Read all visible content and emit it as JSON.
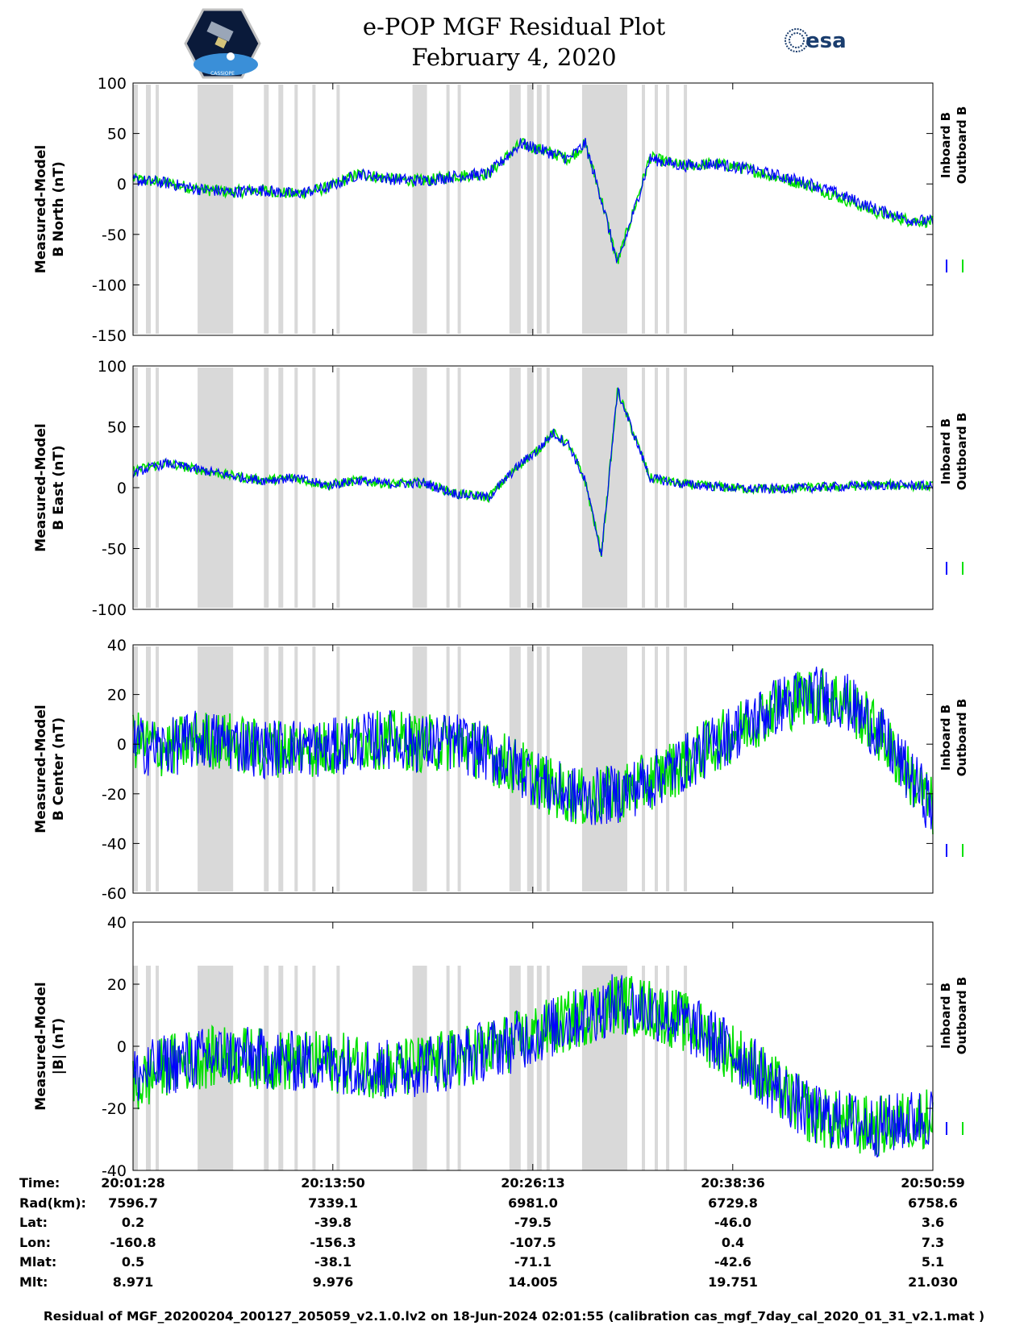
{
  "title_line1": "e-POP MGF Residual Plot",
  "title_line2": "February 4, 2020",
  "logos": {
    "left": "cassiope-mission-patch",
    "left_text": "CASSIOPE",
    "right": "esa-logo",
    "right_text": "esa"
  },
  "colors": {
    "inboard": "#0000ff",
    "outboard": "#00e000",
    "gap_shading": "#d9d9d9"
  },
  "chart_data": [
    {
      "type": "line",
      "ylabel_line1": "Measured-Model",
      "ylabel_line2": "B North (nT)",
      "ylim": [
        -150,
        100
      ],
      "yticks": [
        "100",
        "50",
        "0",
        "-50",
        "-100",
        "-150"
      ],
      "x_unit": "minutes since 20:01:28",
      "legend": [
        "Inboard B",
        "Outboard B"
      ],
      "series": [
        {
          "name": "Inboard B",
          "x": [
            0,
            2,
            4,
            6,
            8,
            10,
            12,
            14,
            16,
            18,
            20,
            22,
            24,
            26,
            27,
            28,
            29,
            30,
            32,
            34,
            36,
            38,
            40,
            42,
            44,
            46,
            48,
            50
          ],
          "values": [
            4,
            1,
            -5,
            -8,
            -6,
            -10,
            -4,
            10,
            5,
            3,
            8,
            10,
            40,
            30,
            25,
            40,
            -15,
            -80,
            25,
            18,
            20,
            15,
            8,
            0,
            -12,
            -25,
            -35,
            -38
          ]
        },
        {
          "name": "Outboard B",
          "x": [
            0,
            2,
            4,
            6,
            8,
            10,
            12,
            14,
            16,
            18,
            20,
            22,
            24,
            26,
            27,
            28,
            29,
            30,
            32,
            34,
            36,
            38,
            40,
            42,
            44,
            46,
            48,
            50
          ],
          "values": [
            5,
            1,
            -5,
            -8,
            -6,
            -10,
            -4,
            10,
            5,
            3,
            8,
            10,
            40,
            30,
            25,
            40,
            -15,
            -78,
            26,
            18,
            20,
            15,
            6,
            -2,
            -15,
            -28,
            -36,
            -38
          ]
        }
      ]
    },
    {
      "type": "line",
      "ylabel_line1": "Measured-Model",
      "ylabel_line2": "B East (nT)",
      "ylim": [
        -100,
        100
      ],
      "yticks": [
        "100",
        "50",
        "0",
        "-50",
        "-100"
      ],
      "x_unit": "minutes since 20:01:28",
      "legend": [
        "Inboard B",
        "Outboard B"
      ],
      "series": [
        {
          "name": "Inboard B",
          "x": [
            0,
            2,
            4,
            6,
            8,
            10,
            12,
            14,
            16,
            18,
            20,
            22,
            24,
            25,
            26,
            27,
            28,
            29,
            30,
            32,
            34,
            36,
            38,
            40,
            42,
            44,
            46,
            48,
            50
          ],
          "values": [
            12,
            20,
            15,
            10,
            6,
            8,
            2,
            6,
            3,
            4,
            -5,
            -8,
            20,
            30,
            45,
            35,
            5,
            -55,
            80,
            8,
            3,
            1,
            -1,
            -1,
            0,
            1,
            2,
            2,
            1
          ]
        },
        {
          "name": "Outboard B",
          "x": [
            0,
            2,
            4,
            6,
            8,
            10,
            12,
            14,
            16,
            18,
            20,
            22,
            24,
            25,
            26,
            27,
            28,
            29,
            30,
            32,
            34,
            36,
            38,
            40,
            42,
            44,
            46,
            48,
            50
          ],
          "values": [
            14,
            20,
            15,
            10,
            6,
            8,
            2,
            6,
            3,
            4,
            -5,
            -8,
            20,
            30,
            45,
            35,
            5,
            -55,
            80,
            8,
            3,
            1,
            -1,
            -1,
            0,
            1,
            2,
            2,
            1
          ]
        }
      ]
    },
    {
      "type": "line",
      "ylabel_line1": "Measured-Model",
      "ylabel_line2": "B Center (nT)",
      "ylim": [
        -60,
        40
      ],
      "yticks": [
        "40",
        "20",
        "0",
        "-20",
        "-40",
        "-60"
      ],
      "x_unit": "minutes since 20:01:28",
      "legend": [
        "Inboard B",
        "Outboard B"
      ],
      "series": [
        {
          "name": "Inboard B",
          "x": [
            0,
            2,
            4,
            6,
            8,
            10,
            12,
            14,
            16,
            18,
            20,
            22,
            24,
            26,
            28,
            30,
            32,
            34,
            36,
            38,
            40,
            42,
            44,
            46,
            48,
            50
          ],
          "values": [
            0,
            -2,
            2,
            1,
            -2,
            -1,
            -2,
            1,
            2,
            0,
            1,
            -4,
            -10,
            -18,
            -22,
            -20,
            -15,
            -8,
            0,
            8,
            16,
            20,
            18,
            6,
            -12,
            -30
          ]
        },
        {
          "name": "Outboard B",
          "x": [
            0,
            2,
            4,
            6,
            8,
            10,
            12,
            14,
            16,
            18,
            20,
            22,
            24,
            26,
            28,
            30,
            32,
            34,
            36,
            38,
            40,
            42,
            44,
            46,
            48,
            50
          ],
          "values": [
            2,
            -2,
            2,
            1,
            -2,
            -1,
            -2,
            1,
            2,
            0,
            1,
            -4,
            -10,
            -18,
            -22,
            -20,
            -15,
            -8,
            0,
            8,
            16,
            20,
            18,
            6,
            -12,
            -30
          ]
        }
      ]
    },
    {
      "type": "line",
      "ylabel_line1": "Measured-Model",
      "ylabel_line2": "|B| (nT)",
      "ylim": [
        -40,
        40
      ],
      "yticks": [
        "40",
        "20",
        "0",
        "-20",
        "-40"
      ],
      "x_unit": "minutes since 20:01:28",
      "legend": [
        "Inboard B",
        "Outboard B"
      ],
      "series": [
        {
          "name": "Inboard B",
          "x": [
            0,
            2,
            4,
            6,
            8,
            10,
            12,
            14,
            16,
            18,
            20,
            22,
            24,
            26,
            28,
            30,
            32,
            34,
            36,
            38,
            40,
            42,
            44,
            46,
            48,
            50
          ],
          "values": [
            -10,
            -6,
            -4,
            -3,
            -4,
            -5,
            -5,
            -6,
            -8,
            -6,
            -4,
            -1,
            2,
            6,
            10,
            14,
            12,
            8,
            2,
            -5,
            -14,
            -22,
            -24,
            -26,
            -24,
            -22
          ]
        },
        {
          "name": "Outboard B",
          "x": [
            0,
            2,
            4,
            6,
            8,
            10,
            12,
            14,
            16,
            18,
            20,
            22,
            24,
            26,
            28,
            30,
            32,
            34,
            36,
            38,
            40,
            42,
            44,
            46,
            48,
            50
          ],
          "values": [
            -14,
            -6,
            -4,
            -3,
            -4,
            -5,
            -5,
            -6,
            -8,
            -6,
            -4,
            -1,
            2,
            6,
            10,
            14,
            12,
            8,
            2,
            -5,
            -14,
            -22,
            -25,
            -26,
            -24,
            -22
          ]
        }
      ]
    }
  ],
  "gap_intervals_minutes": [
    [
      0.0,
      0.3
    ],
    [
      0.8,
      1.1
    ],
    [
      1.4,
      1.6
    ],
    [
      4.0,
      6.2
    ],
    [
      8.1,
      8.4
    ],
    [
      9.0,
      9.3
    ],
    [
      10.0,
      10.2
    ],
    [
      11.1,
      11.3
    ],
    [
      12.6,
      12.8
    ],
    [
      17.3,
      18.2
    ],
    [
      19.4,
      19.6
    ],
    [
      20.1,
      20.3
    ],
    [
      23.3,
      24.0
    ],
    [
      24.4,
      24.8
    ],
    [
      25.0,
      25.3
    ],
    [
      25.6,
      25.8
    ],
    [
      27.8,
      30.6
    ],
    [
      31.5,
      31.7
    ],
    [
      32.3,
      32.5
    ],
    [
      33.0,
      33.2
    ],
    [
      34.1,
      34.3
    ]
  ],
  "gap_shading_shown_on_panels": [
    1,
    2,
    3,
    4
  ],
  "footer": {
    "rows": [
      {
        "label": "Time:",
        "values": [
          "20:01:28",
          "20:13:50",
          "20:26:13",
          "20:38:36",
          "20:50:59"
        ]
      },
      {
        "label": "Rad(km):",
        "values": [
          "7596.7",
          "7339.1",
          "6981.0",
          "6729.8",
          "6758.6"
        ]
      },
      {
        "label": "Lat:",
        "values": [
          "0.2",
          "-39.8",
          "-79.5",
          "-46.0",
          "3.6"
        ]
      },
      {
        "label": "Lon:",
        "values": [
          "-160.8",
          "-156.3",
          "-107.5",
          "0.4",
          "7.3"
        ]
      },
      {
        "label": "Mlat:",
        "values": [
          "0.5",
          "-38.1",
          "-71.1",
          "-42.6",
          "5.1"
        ]
      },
      {
        "label": "Mlt:",
        "values": [
          "8.971",
          "9.976",
          "14.005",
          "19.751",
          "21.030"
        ]
      }
    ]
  },
  "footnote": "Residual of MGF_20200204_200127_205059_v2.1.0.lv2 on 18-Jun-2024 02:01:55 (calibration cas_mgf_7day_cal_2020_01_31_v2.1.mat )"
}
